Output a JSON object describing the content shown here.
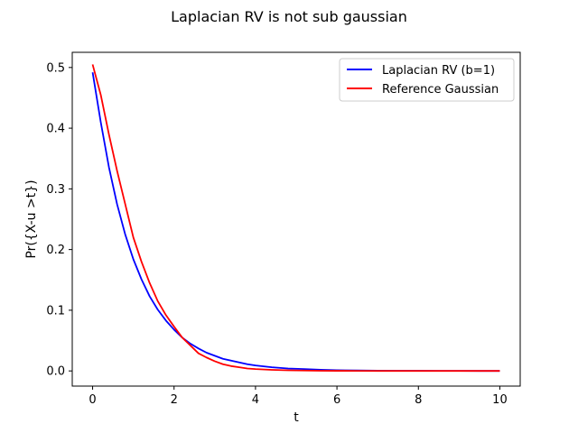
{
  "chart_data": {
    "type": "line",
    "title": "Laplacian RV is not sub gaussian",
    "xlabel": "t",
    "ylabel": "Pr({X-u >t})",
    "xlim": [
      -0.5,
      10.5
    ],
    "ylim": [
      -0.025,
      0.525
    ],
    "xticks": [
      0,
      2,
      4,
      6,
      8,
      10
    ],
    "yticks": [
      0.0,
      0.1,
      0.2,
      0.3,
      0.4,
      0.5
    ],
    "xtick_labels": [
      "0",
      "2",
      "4",
      "6",
      "8",
      "10"
    ],
    "ytick_labels": [
      "0.0",
      "0.1",
      "0.2",
      "0.3",
      "0.4",
      "0.5"
    ],
    "grid": false,
    "legend_position": "top-right",
    "series": [
      {
        "name": "Laplacian RV (b=1)",
        "color": "#0000ff",
        "x": [
          0,
          0.2,
          0.4,
          0.6,
          0.8,
          1.0,
          1.2,
          1.4,
          1.6,
          1.8,
          2.0,
          2.2,
          2.4,
          2.6,
          2.8,
          3.0,
          3.2,
          3.4,
          3.6,
          3.8,
          4.0,
          4.4,
          4.8,
          5.2,
          5.6,
          6.0,
          6.5,
          7.0,
          7.5,
          8.0,
          8.5,
          9.0,
          9.5,
          10.0
        ],
        "values": [
          0.492,
          0.41,
          0.336,
          0.275,
          0.225,
          0.184,
          0.151,
          0.123,
          0.101,
          0.083,
          0.068,
          0.055,
          0.045,
          0.037,
          0.03,
          0.025,
          0.02,
          0.017,
          0.014,
          0.011,
          0.009,
          0.006,
          0.004,
          0.003,
          0.002,
          0.0012,
          0.0008,
          0.0005,
          0.0003,
          0.0002,
          0.0001,
          0.0001,
          0.0,
          0.0
        ]
      },
      {
        "name": "Reference Gaussian",
        "color": "#ff0000",
        "x": [
          0,
          0.2,
          0.4,
          0.6,
          0.8,
          1.0,
          1.2,
          1.4,
          1.6,
          1.8,
          2.0,
          2.2,
          2.4,
          2.6,
          2.8,
          3.0,
          3.2,
          3.4,
          3.6,
          3.8,
          4.0,
          4.4,
          4.8,
          5.2,
          5.6,
          6.0,
          6.5,
          7.0,
          7.5,
          8.0,
          8.5,
          9.0,
          9.5,
          10.0
        ],
        "values": [
          0.505,
          0.455,
          0.39,
          0.33,
          0.275,
          0.22,
          0.18,
          0.145,
          0.115,
          0.092,
          0.073,
          0.055,
          0.042,
          0.029,
          0.022,
          0.016,
          0.011,
          0.008,
          0.006,
          0.004,
          0.003,
          0.0018,
          0.001,
          0.0006,
          0.0003,
          0.0002,
          0.0001,
          0.0,
          0.0,
          0.0,
          0.0,
          0.0,
          0.0,
          0.0
        ]
      }
    ]
  }
}
